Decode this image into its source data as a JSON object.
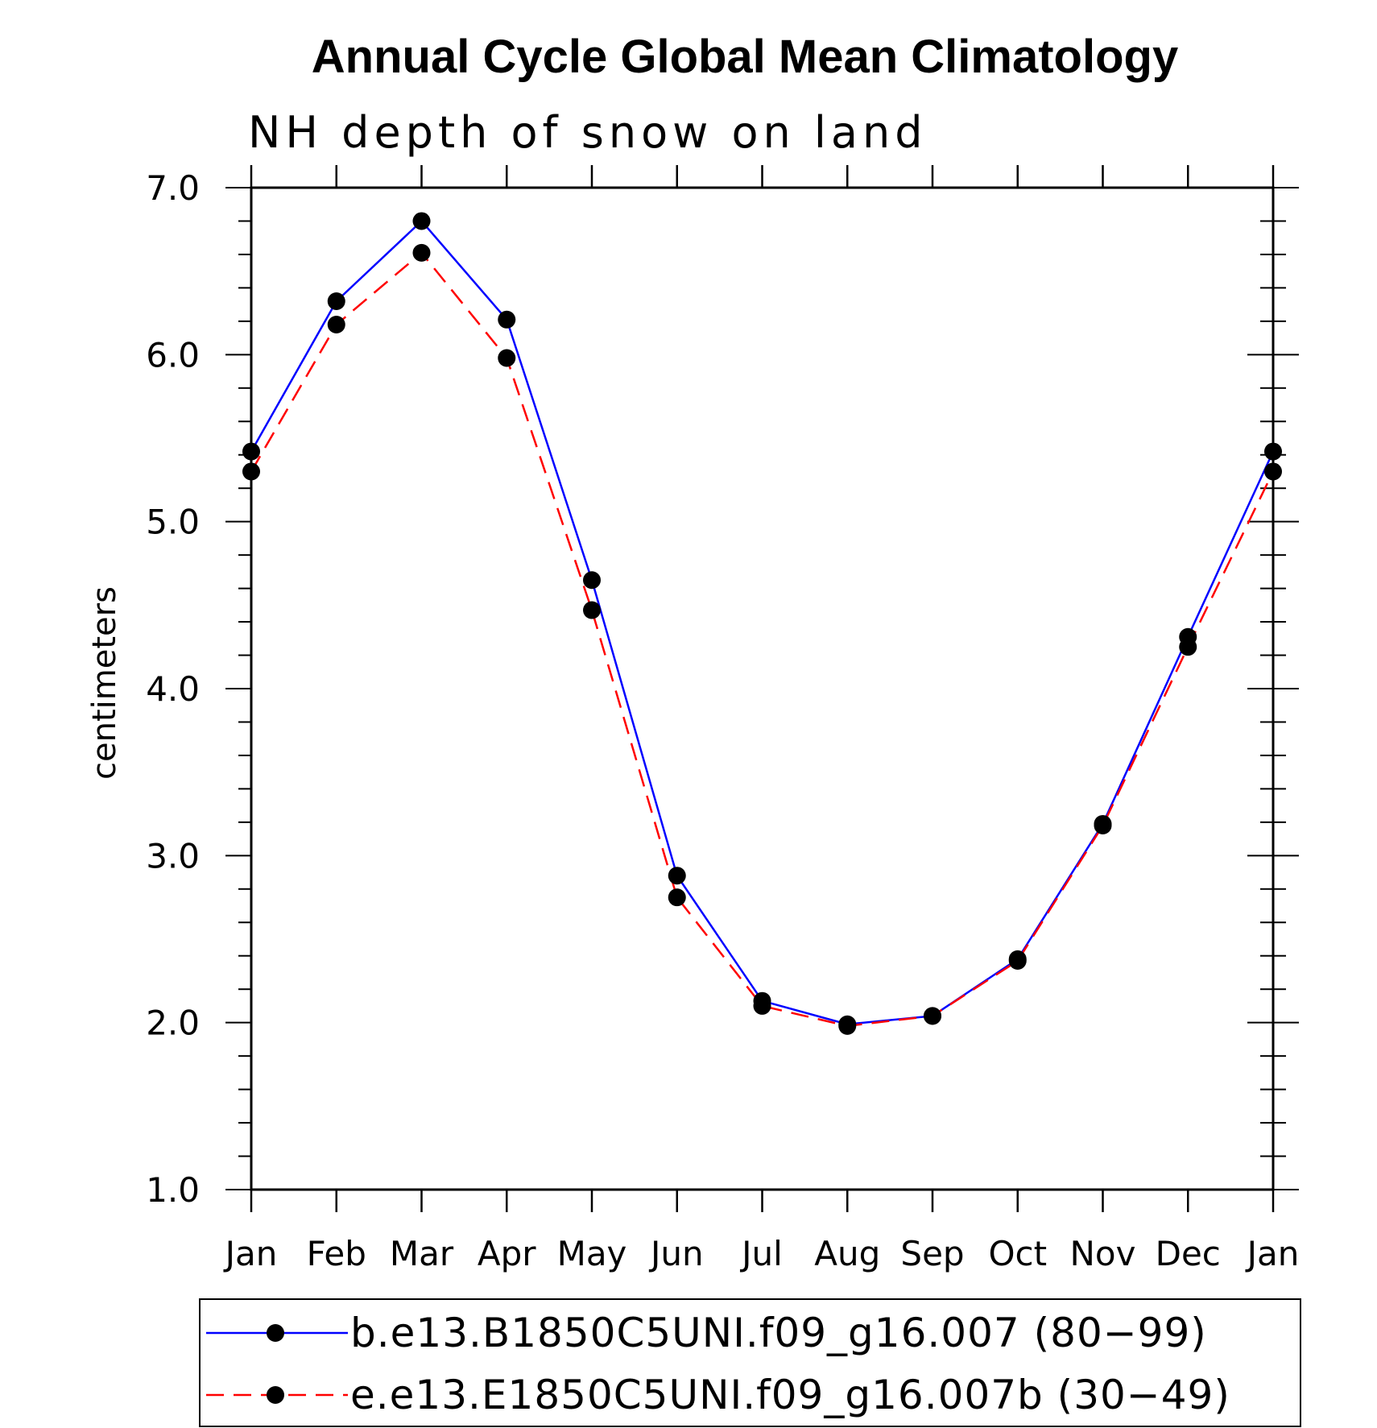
{
  "chart_data": {
    "type": "line",
    "title": "Annual Cycle Global Mean Climatology",
    "subtitle": "NH depth of snow on land",
    "xlabel": "",
    "ylabel": "centimeters",
    "categories": [
      "Jan",
      "Feb",
      "Mar",
      "Apr",
      "May",
      "Jun",
      "Jul",
      "Aug",
      "Sep",
      "Oct",
      "Nov",
      "Dec",
      "Jan"
    ],
    "ylim": [
      1.0,
      7.0
    ],
    "yticks": [
      "1.0",
      "2.0",
      "3.0",
      "4.0",
      "5.0",
      "6.0",
      "7.0"
    ],
    "series": [
      {
        "name": "b.e13.B1850C5UNI.f09_g16.007 (80−99)",
        "color": "#0000ff",
        "style": "solid",
        "marker": "filled-circle",
        "values": [
          5.42,
          6.32,
          6.8,
          6.21,
          4.65,
          2.88,
          2.13,
          1.99,
          2.04,
          2.38,
          3.19,
          4.31,
          5.42
        ]
      },
      {
        "name": "e.e13.E1850C5UNI.f09_g16.007b (30−49)",
        "color": "#ff0000",
        "style": "dashed",
        "marker": "filled-circle",
        "values": [
          5.3,
          6.18,
          6.61,
          5.98,
          4.47,
          2.75,
          2.1,
          1.98,
          2.04,
          2.37,
          3.18,
          4.25,
          5.3
        ]
      }
    ],
    "legend_position": "bottom"
  }
}
